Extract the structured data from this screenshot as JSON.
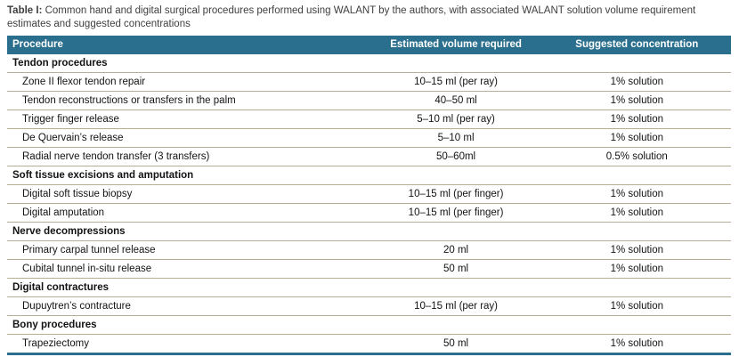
{
  "title": {
    "label": "Table I:",
    "text": "Common hand and digital surgical procedures performed using WALANT by the authors, with associated WALANT solution volume requirement estimates and suggested concentrations"
  },
  "table": {
    "columns": [
      "Procedure",
      "Estimated volume required",
      "Suggested concentration"
    ],
    "rows": [
      {
        "type": "section",
        "procedure": "Tendon procedures"
      },
      {
        "type": "item",
        "procedure": "Zone II flexor tendon repair",
        "volume": "10–15 ml (per ray)",
        "concentration": "1% solution"
      },
      {
        "type": "item",
        "procedure": "Tendon reconstructions or transfers in the palm",
        "volume": "40–50 ml",
        "concentration": "1% solution"
      },
      {
        "type": "item",
        "procedure": "Trigger finger release",
        "volume": "5–10 ml (per ray)",
        "concentration": "1% solution"
      },
      {
        "type": "item",
        "procedure": "De Quervain’s release",
        "volume": "5–10 ml",
        "concentration": "1% solution"
      },
      {
        "type": "item",
        "procedure": "Radial nerve tendon transfer (3 transfers)",
        "volume": "50–60ml",
        "concentration": "0.5% solution"
      },
      {
        "type": "section",
        "procedure": "Soft tissue excisions and amputation"
      },
      {
        "type": "item",
        "procedure": "Digital soft tissue biopsy",
        "volume": "10–15 ml (per finger)",
        "concentration": "1% solution"
      },
      {
        "type": "item",
        "procedure": "Digital amputation",
        "volume": "10–15 ml (per finger)",
        "concentration": "1% solution"
      },
      {
        "type": "section",
        "procedure": "Nerve decompressions"
      },
      {
        "type": "item",
        "procedure": "Primary carpal tunnel release",
        "volume": "20 ml",
        "concentration": "1% solution"
      },
      {
        "type": "item",
        "procedure": "Cubital tunnel in-situ release",
        "volume": "50 ml",
        "concentration": "1% solution"
      },
      {
        "type": "section",
        "procedure": "Digital contractures"
      },
      {
        "type": "item",
        "procedure": "Dupuytren’s contracture",
        "volume": "10–15 ml (per ray)",
        "concentration": "1% solution"
      },
      {
        "type": "section",
        "procedure": "Bony procedures"
      },
      {
        "type": "item",
        "procedure": "Trapeziectomy",
        "volume": "50 ml",
        "concentration": "1% solution"
      }
    ]
  },
  "colors": {
    "header_bg": "#2b6f8e",
    "divider": "#b8ae94"
  }
}
